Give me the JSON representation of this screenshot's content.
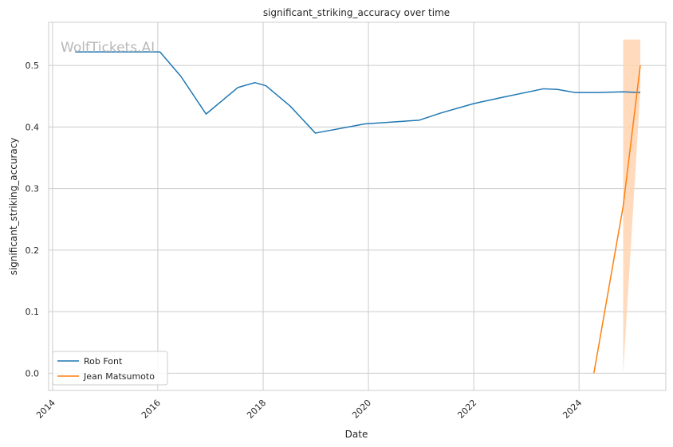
{
  "watermark": "WolfTickets.AI",
  "chart_data": {
    "type": "line",
    "title": "significant_striking_accuracy over time",
    "xlabel": "Date",
    "ylabel": "significant_striking_accuracy",
    "xlim": [
      "2013-12-05",
      "2025-08-25"
    ],
    "ylim": [
      -0.028,
      0.57
    ],
    "x_ticks": [
      "2014",
      "2016",
      "2018",
      "2020",
      "2022",
      "2024"
    ],
    "x_tick_dates": [
      "2014-01-01",
      "2016-01-01",
      "2018-01-01",
      "2020-01-01",
      "2022-01-01",
      "2024-01-01"
    ],
    "y_ticks": [
      0.0,
      0.1,
      0.2,
      0.3,
      0.4,
      0.5
    ],
    "y_tick_labels": [
      "0.0",
      "0.1",
      "0.2",
      "0.3",
      "0.4",
      "0.5"
    ],
    "grid": true,
    "legend_position": "lower-left",
    "series": [
      {
        "name": "Rob Font",
        "color": "#1f77b4",
        "points": [
          {
            "x": "2014-06-07",
            "y": 0.522
          },
          {
            "x": "2015-01-01",
            "y": 0.522
          },
          {
            "x": "2016-01-16",
            "y": 0.522
          },
          {
            "x": "2016-06-10",
            "y": 0.482
          },
          {
            "x": "2016-12-01",
            "y": 0.421
          },
          {
            "x": "2017-07-09",
            "y": 0.464
          },
          {
            "x": "2017-11-04",
            "y": 0.472
          },
          {
            "x": "2018-01-20",
            "y": 0.467
          },
          {
            "x": "2018-07-07",
            "y": 0.434
          },
          {
            "x": "2018-12-29",
            "y": 0.39
          },
          {
            "x": "2019-12-07",
            "y": 0.405
          },
          {
            "x": "2020-12-19",
            "y": 0.411
          },
          {
            "x": "2021-05-22",
            "y": 0.423
          },
          {
            "x": "2022-01-01",
            "y": 0.438
          },
          {
            "x": "2022-07-16",
            "y": 0.448
          },
          {
            "x": "2023-04-29",
            "y": 0.462
          },
          {
            "x": "2023-08-05",
            "y": 0.461
          },
          {
            "x": "2023-12-02",
            "y": 0.456
          },
          {
            "x": "2024-05-01",
            "y": 0.456
          },
          {
            "x": "2024-11-02",
            "y": 0.457
          },
          {
            "x": "2025-03-01",
            "y": 0.456
          }
        ]
      },
      {
        "name": "Jean Matsumoto",
        "color": "#ff7f0e",
        "points": [
          {
            "x": "2024-04-13",
            "y": 0.0
          },
          {
            "x": "2024-11-02",
            "y": 0.271
          },
          {
            "x": "2025-03-01",
            "y": 0.5
          }
        ],
        "confidence_band": {
          "color": "#ffd3b0",
          "points": [
            {
              "x": "2024-11-02",
              "low": 0.0,
              "high": 0.542
            },
            {
              "x": "2025-03-01",
              "low": 0.458,
              "high": 0.542
            }
          ]
        }
      }
    ]
  }
}
